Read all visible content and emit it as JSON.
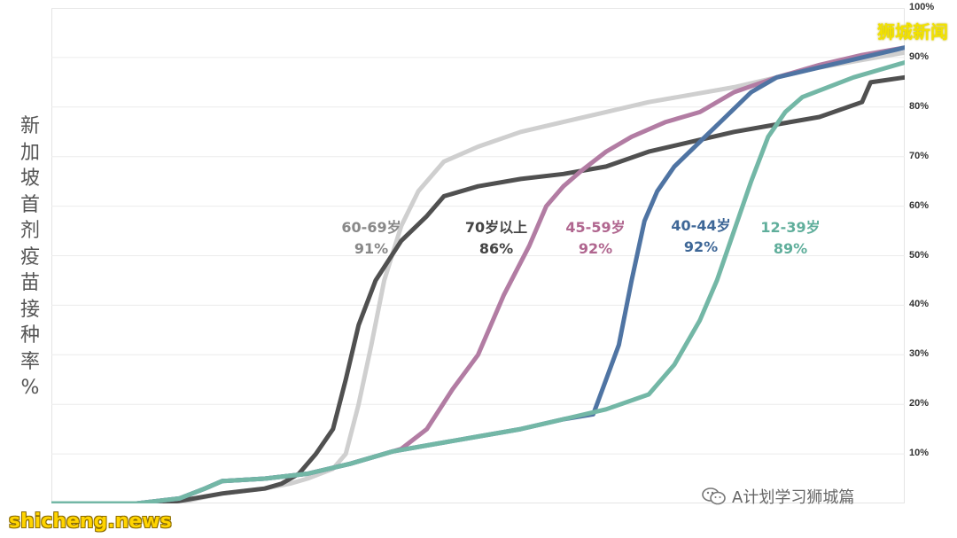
{
  "y_axis_label": "新加坡首剂疫苗接种率%",
  "y_ticks": [
    "10%",
    "20%",
    "30%",
    "40%",
    "50%",
    "60%",
    "70%",
    "80%",
    "90%",
    "100%"
  ],
  "brand_text": "狮城新闻",
  "watermark_site": "shicheng.news",
  "watermark_wechat": "A计划学习狮城篇",
  "chart_data": {
    "type": "line",
    "title": "",
    "xlabel": "",
    "ylabel": "新加坡首剂疫苗接种率%",
    "ylim": [
      0,
      100
    ],
    "grid": "horizontal",
    "series": [
      {
        "name": "60-69岁",
        "final_label": "91%",
        "color": "#cfcfcf",
        "points": [
          [
            0,
            0
          ],
          [
            0.1,
            0
          ],
          [
            0.15,
            0.2
          ],
          [
            0.2,
            2
          ],
          [
            0.25,
            3
          ],
          [
            0.28,
            4
          ],
          [
            0.3,
            5
          ],
          [
            0.33,
            7
          ],
          [
            0.345,
            10
          ],
          [
            0.36,
            20
          ],
          [
            0.375,
            32
          ],
          [
            0.39,
            45
          ],
          [
            0.41,
            56
          ],
          [
            0.43,
            63
          ],
          [
            0.46,
            69
          ],
          [
            0.5,
            72
          ],
          [
            0.55,
            75
          ],
          [
            0.6,
            77
          ],
          [
            0.65,
            79
          ],
          [
            0.7,
            81
          ],
          [
            0.75,
            82.5
          ],
          [
            0.8,
            84
          ],
          [
            0.85,
            86
          ],
          [
            0.9,
            88
          ],
          [
            0.95,
            89.5
          ],
          [
            1,
            91
          ]
        ]
      },
      {
        "name": "70岁以上",
        "final_label": "86%",
        "color": "#505050",
        "points": [
          [
            0,
            0
          ],
          [
            0.12,
            0
          ],
          [
            0.15,
            0.5
          ],
          [
            0.2,
            2
          ],
          [
            0.25,
            3
          ],
          [
            0.27,
            4
          ],
          [
            0.29,
            6
          ],
          [
            0.31,
            10
          ],
          [
            0.33,
            15
          ],
          [
            0.345,
            25
          ],
          [
            0.36,
            36
          ],
          [
            0.38,
            45
          ],
          [
            0.41,
            53
          ],
          [
            0.44,
            58
          ],
          [
            0.46,
            62
          ],
          [
            0.5,
            64
          ],
          [
            0.55,
            65.5
          ],
          [
            0.6,
            66.5
          ],
          [
            0.65,
            68
          ],
          [
            0.7,
            71
          ],
          [
            0.75,
            73
          ],
          [
            0.8,
            75
          ],
          [
            0.85,
            76.5
          ],
          [
            0.9,
            78
          ],
          [
            0.95,
            81
          ],
          [
            0.96,
            85
          ],
          [
            1,
            86
          ]
        ]
      },
      {
        "name": "45-59岁",
        "final_label": "92%",
        "color": "#b27ca3",
        "points": [
          [
            0,
            0
          ],
          [
            0.1,
            0
          ],
          [
            0.15,
            1
          ],
          [
            0.18,
            3
          ],
          [
            0.2,
            4.5
          ],
          [
            0.25,
            5
          ],
          [
            0.3,
            6
          ],
          [
            0.35,
            8
          ],
          [
            0.38,
            9.5
          ],
          [
            0.41,
            11
          ],
          [
            0.44,
            15
          ],
          [
            0.47,
            23
          ],
          [
            0.5,
            30
          ],
          [
            0.53,
            42
          ],
          [
            0.56,
            52
          ],
          [
            0.58,
            60
          ],
          [
            0.6,
            64
          ],
          [
            0.62,
            67
          ],
          [
            0.65,
            71
          ],
          [
            0.68,
            74
          ],
          [
            0.72,
            77
          ],
          [
            0.76,
            79
          ],
          [
            0.8,
            83
          ],
          [
            0.85,
            86
          ],
          [
            0.9,
            88.5
          ],
          [
            0.95,
            90.5
          ],
          [
            1,
            92
          ]
        ]
      },
      {
        "name": "40-44岁",
        "final_label": "92%",
        "color": "#4f74a3",
        "points": [
          [
            0,
            0
          ],
          [
            0.1,
            0
          ],
          [
            0.15,
            1
          ],
          [
            0.18,
            3
          ],
          [
            0.2,
            4.5
          ],
          [
            0.25,
            5
          ],
          [
            0.3,
            6
          ],
          [
            0.35,
            8
          ],
          [
            0.4,
            10.5
          ],
          [
            0.45,
            12
          ],
          [
            0.5,
            13.5
          ],
          [
            0.55,
            15
          ],
          [
            0.6,
            17
          ],
          [
            0.635,
            18
          ],
          [
            0.65,
            25
          ],
          [
            0.665,
            32
          ],
          [
            0.68,
            45
          ],
          [
            0.695,
            57
          ],
          [
            0.71,
            63
          ],
          [
            0.73,
            68
          ],
          [
            0.76,
            73
          ],
          [
            0.79,
            78
          ],
          [
            0.82,
            83
          ],
          [
            0.85,
            86
          ],
          [
            0.9,
            88
          ],
          [
            0.95,
            90
          ],
          [
            1,
            92
          ]
        ]
      },
      {
        "name": "12-39岁",
        "final_label": "89%",
        "color": "#73b7a6",
        "points": [
          [
            0,
            0
          ],
          [
            0.1,
            0
          ],
          [
            0.15,
            1
          ],
          [
            0.18,
            3
          ],
          [
            0.2,
            4.5
          ],
          [
            0.25,
            5
          ],
          [
            0.3,
            6
          ],
          [
            0.35,
            8
          ],
          [
            0.4,
            10.5
          ],
          [
            0.45,
            12
          ],
          [
            0.5,
            13.5
          ],
          [
            0.55,
            15
          ],
          [
            0.6,
            17
          ],
          [
            0.65,
            19
          ],
          [
            0.7,
            22
          ],
          [
            0.73,
            28
          ],
          [
            0.76,
            37
          ],
          [
            0.78,
            45
          ],
          [
            0.8,
            55
          ],
          [
            0.82,
            65
          ],
          [
            0.84,
            74
          ],
          [
            0.86,
            79
          ],
          [
            0.88,
            82
          ],
          [
            0.91,
            84
          ],
          [
            0.94,
            86
          ],
          [
            0.97,
            87.5
          ],
          [
            1,
            89
          ]
        ]
      }
    ]
  }
}
